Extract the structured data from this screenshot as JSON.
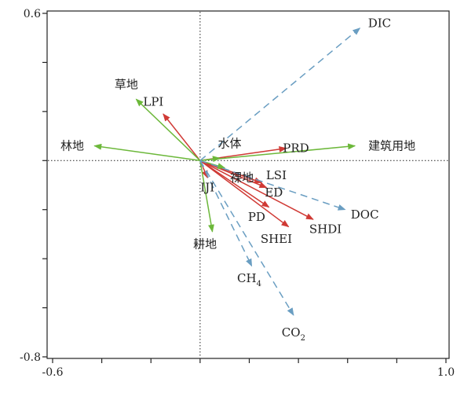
{
  "chart_data": {
    "type": "scatter",
    "title": "",
    "xlabel": "",
    "ylabel": "",
    "xlim": [
      -0.6,
      1.0
    ],
    "ylim": [
      -0.8,
      0.6
    ],
    "grid": false,
    "x_tick_labels": [
      {
        "value": -0.6,
        "label": "-0.6"
      },
      {
        "value": 1.0,
        "label": "1.0"
      }
    ],
    "y_tick_labels": [
      {
        "value": 0.6,
        "label": "0.6"
      },
      {
        "value": -0.8,
        "label": "-0.8"
      }
    ],
    "x_minor_ticks": [
      -0.4,
      -0.2,
      0.0,
      0.2,
      0.4,
      0.6,
      0.8
    ],
    "y_minor_ticks": [
      0.4,
      0.2,
      0.0,
      -0.2,
      -0.4,
      -0.6
    ],
    "colors": {
      "landscape_index": "#d03a35",
      "land_use": "#6cb83a",
      "carbon": "#6a9ec2"
    },
    "series": [
      {
        "group": "landscape_index",
        "style": "solid",
        "vectors": [
          {
            "label": "LPI",
            "x": -0.15,
            "y": 0.19,
            "label_dx": -0.04,
            "label_dy": 0.05
          },
          {
            "label": "PRD",
            "x": 0.35,
            "y": 0.05,
            "label_dx": 0.04,
            "label_dy": 0.0
          },
          {
            "label": "LSI",
            "x": 0.25,
            "y": -0.09,
            "label_dx": 0.06,
            "label_dy": 0.03
          },
          {
            "label": "ED",
            "x": 0.27,
            "y": -0.11,
            "label_dx": 0.03,
            "label_dy": -0.02
          },
          {
            "label": "PD",
            "x": 0.28,
            "y": -0.19,
            "label_dx": -0.05,
            "label_dy": -0.04
          },
          {
            "label": "SHEI",
            "x": 0.36,
            "y": -0.27,
            "label_dx": -0.05,
            "label_dy": -0.05
          },
          {
            "label": "SHDI",
            "x": 0.46,
            "y": -0.24,
            "label_dx": 0.05,
            "label_dy": -0.04
          },
          {
            "label": "IJI",
            "x": 0.03,
            "y": -0.07,
            "label_dx": 0.0,
            "label_dy": -0.04
          }
        ]
      },
      {
        "group": "land_use",
        "style": "solid",
        "vectors": [
          {
            "label": "草地",
            "x": -0.26,
            "y": 0.25,
            "label_dx": -0.04,
            "label_dy": 0.06
          },
          {
            "label": "林地",
            "x": -0.43,
            "y": 0.06,
            "label_dx": -0.09,
            "label_dy": 0.0
          },
          {
            "label": "建筑用地",
            "x": 0.63,
            "y": 0.06,
            "label_dx": 0.15,
            "label_dy": 0.0
          },
          {
            "label": "水体",
            "x": 0.08,
            "y": 0.01,
            "label_dx": 0.04,
            "label_dy": 0.06
          },
          {
            "label": "裸地",
            "x": 0.1,
            "y": -0.03,
            "label_dx": 0.07,
            "label_dy": -0.04
          },
          {
            "label": "耕地",
            "x": 0.05,
            "y": -0.29,
            "label_dx": -0.03,
            "label_dy": -0.05
          }
        ]
      },
      {
        "group": "carbon",
        "style": "dashed",
        "vectors": [
          {
            "label": "DIC",
            "x": 0.65,
            "y": 0.54,
            "label_dx": 0.08,
            "label_dy": 0.02
          },
          {
            "label": "DOC",
            "x": 0.59,
            "y": -0.2,
            "label_dx": 0.08,
            "label_dy": -0.02
          },
          {
            "label": "CH",
            "sub": "4",
            "x": 0.21,
            "y": -0.43,
            "label_dx": -0.01,
            "label_dy": -0.05
          },
          {
            "label": "CO",
            "sub": "2",
            "x": 0.38,
            "y": -0.63,
            "label_dx": 0.0,
            "label_dy": -0.07
          }
        ]
      }
    ]
  }
}
